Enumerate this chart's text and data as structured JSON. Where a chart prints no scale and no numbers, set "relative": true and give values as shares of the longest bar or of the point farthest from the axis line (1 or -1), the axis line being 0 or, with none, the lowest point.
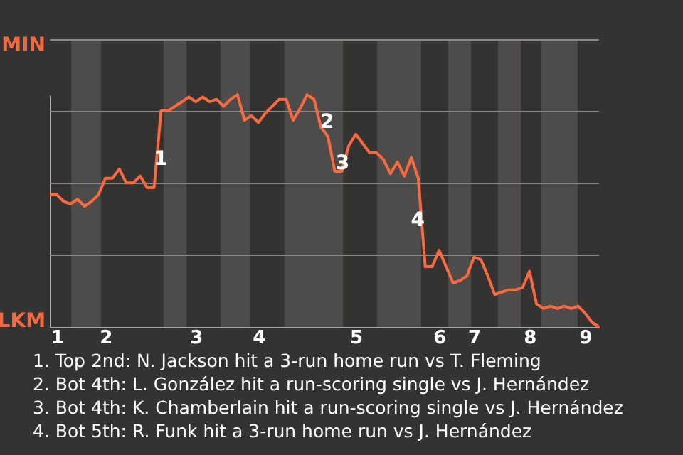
{
  "chart_data": {
    "type": "line",
    "relative": true,
    "categories": [
      null,
      "1",
      null,
      null,
      null,
      null,
      null,
      null,
      "2",
      null,
      null,
      null,
      null,
      null,
      null,
      null,
      null,
      null,
      null,
      null,
      null,
      "3",
      null,
      null,
      null,
      null,
      null,
      null,
      null,
      null,
      "4",
      null,
      null,
      null,
      null,
      null,
      null,
      null,
      null,
      null,
      null,
      null,
      null,
      null,
      "5",
      null,
      null,
      null,
      null,
      null,
      null,
      null,
      null,
      null,
      null,
      null,
      "6",
      null,
      null,
      null,
      null,
      "7",
      null,
      null,
      null,
      null,
      null,
      null,
      null,
      "8",
      null,
      null,
      null,
      null,
      null,
      null,
      null,
      "9",
      null,
      null
    ],
    "series": [
      {
        "color": "#fa6a40",
        "values": [
          0.57,
          0.57,
          0.54,
          0.53,
          0.55,
          0.52,
          0.54,
          0.57,
          0.64,
          0.64,
          0.68,
          0.62,
          0.62,
          0.65,
          0.6,
          0.6,
          0.93,
          0.93,
          0.95,
          0.97,
          0.99,
          0.97,
          0.99,
          0.97,
          0.98,
          0.95,
          0.98,
          1,
          0.89,
          0.91,
          0.88,
          0.92,
          0.95,
          0.98,
          0.98,
          0.89,
          0.94,
          1,
          0.98,
          0.86,
          0.82,
          0.67,
          0.67,
          0.78,
          0.83,
          0.79,
          0.75,
          0.75,
          0.72,
          0.66,
          0.71,
          0.65,
          0.73,
          0.64,
          0.26,
          0.26,
          0.33,
          0.26,
          0.19,
          0.2,
          0.22,
          0.3,
          0.29,
          0.22,
          0.14,
          0.15,
          0.16,
          0.16,
          0.17,
          0.24,
          0.1,
          0.08,
          0.09,
          0.08,
          0.09,
          0.08,
          0.09,
          0.06,
          0.02,
          0
        ]
      }
    ],
    "grid": "y",
    "annotations": [
      "MIN",
      "LKM",
      "1",
      "2",
      "3",
      "4",
      "1. Top 2nd: N. Jackson hit a 3-run home run vs T. Fleming",
      "2. Bot 4th: L. González hit a run-scoring single vs J. Hernández",
      "3. Bot 4th: K. Chamberlain hit a run-scoring single vs J. Hernández",
      "4. Bot 5th: R. Funk hit a 3-run home run vs J. Hernández"
    ]
  }
}
